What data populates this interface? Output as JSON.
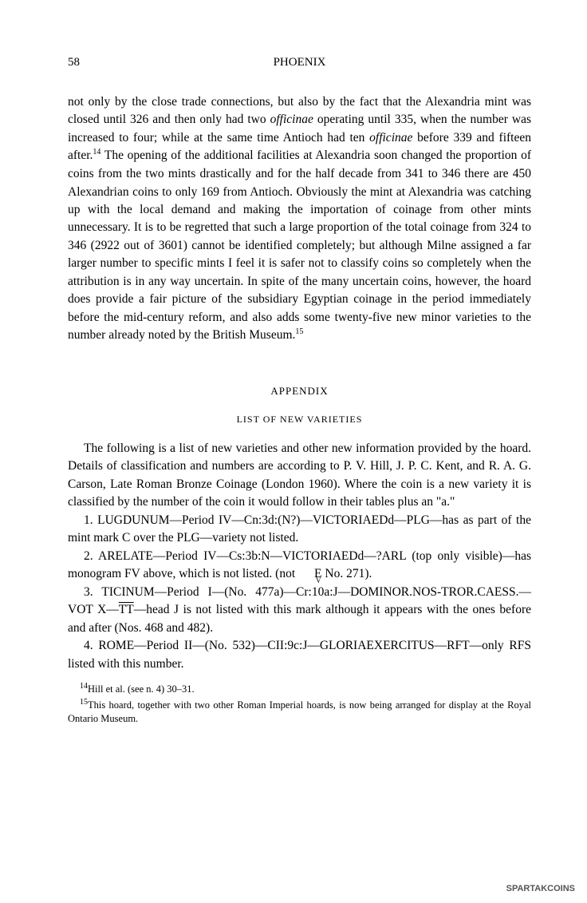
{
  "header": {
    "page_number": "58",
    "journal_title": "PHOENIX"
  },
  "main_paragraph": {
    "part1": "not only by the close trade connections, but also by the fact that the Alexandria mint was closed until 326 and then only had two ",
    "italic1": "officinae",
    "part2": " operating until 335, when the number was increased to four; while at the same time Antioch had ten ",
    "italic2": "officinae",
    "part3": " before 339 and fifteen after.",
    "fn14": "14",
    "part4": " The opening of the additional facilities at Alexandria soon changed the proportion of coins from the two mints drastically and for the half decade from 341 to 346 there are 450 Alexandrian coins to only 169 from Antioch. Obviously the mint at Alexandria was catching up with the local demand and making the importation of coinage from other mints unnecessary. It is to be regretted that such a large proportion of the total coinage from 324 to 346 (2922 out of 3601) cannot be identified completely; but although Milne assigned a far larger number to specific mints I feel it is safer not to classify coins so completely when the attribution is in any way uncertain. In spite of the many uncertain coins, however, the hoard does provide a fair picture of the subsidiary Egyptian coinage in the period immediately before the mid-century reform, and also adds some twenty-five new minor varieties to the number already noted by the British Museum.",
    "fn15": "15"
  },
  "appendix": {
    "heading": "APPENDIX",
    "list_heading": "LIST OF NEW VARIETIES",
    "intro": {
      "part1": "The following is a list of new varieties and other new information provided by the hoard. Details of classification and numbers are according to P. V. Hill, J. P. C. Kent, and R. A. G. Carson, ",
      "italic1": "Late Roman Bronze Coinage",
      "part2": " (London 1960). Where the coin is a new variety it is classified by the number of the coin it would follow in their tables plus an \"a.\""
    },
    "entries": {
      "e1": "1. LUGDUNUM—Period IV—Cn:3d:(N?)—VICTORIAEDd—PLG—has as part of the mint mark C over the PLG—variety not listed.",
      "e2_part1": "2. ARELATE—Period IV—Cs:3b:N—VICTORIAEDd—?ARL (top only visible)—has monogram FV above, which is not listed. (not ",
      "e2_part2": " No. 271).",
      "e3_part1": "3. TICINUM—Period I—(No. 477a)—Cr:10a:J—DOMINOR.NOS-TROR.CAESS.—VOT X—",
      "e3_tt": "TT",
      "e3_part2": "—head J is not listed with this mark although it appears with the ones before and after (Nos. 468 and 482).",
      "e4": "4. ROME—Period II—(No. 532)—CII:9c:J—GLORIAEXERCITUS—RFT—only RFS listed with this number."
    }
  },
  "footnotes": {
    "fn14": {
      "num": "14",
      "part1": "Hill ",
      "italic1": "et al.",
      "part2": " (see n. 4) 30–31."
    },
    "fn15": {
      "num": "15",
      "text": "This hoard, together with two other Roman Imperial hoards, is now being arranged for display at the Royal Ontario Museum."
    }
  },
  "watermark": "SPARTAKCOINS"
}
